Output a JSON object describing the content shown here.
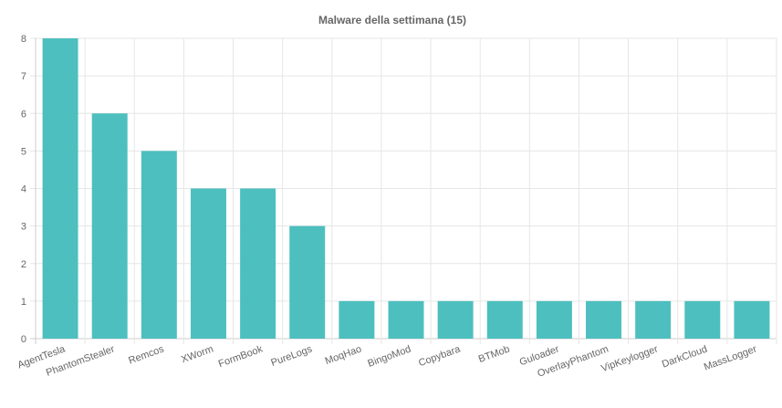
{
  "chart_data": {
    "type": "bar",
    "title": "Malware della settimana (15)",
    "categories": [
      "AgentTesla",
      "PhantomStealer",
      "Remcos",
      "XWorm",
      "FormBook",
      "PureLogs",
      "MoqHao",
      "BingoMod",
      "Copybara",
      "BTMob",
      "Guloader",
      "OverlayPhantom",
      "VipKeylogger",
      "DarkCloud",
      "MassLogger"
    ],
    "values": [
      8,
      6,
      5,
      4,
      4,
      3,
      1,
      1,
      1,
      1,
      1,
      1,
      1,
      1,
      1
    ],
    "ylim": [
      0,
      8
    ],
    "yticks": [
      "0",
      "1",
      "2",
      "3",
      "4",
      "5",
      "6",
      "7",
      "8"
    ],
    "grid": true,
    "legend": "none",
    "colors": {
      "bar": "#4dbfbf",
      "grid": "#e6e6e6",
      "text": "#666666",
      "title": "#666666"
    }
  }
}
